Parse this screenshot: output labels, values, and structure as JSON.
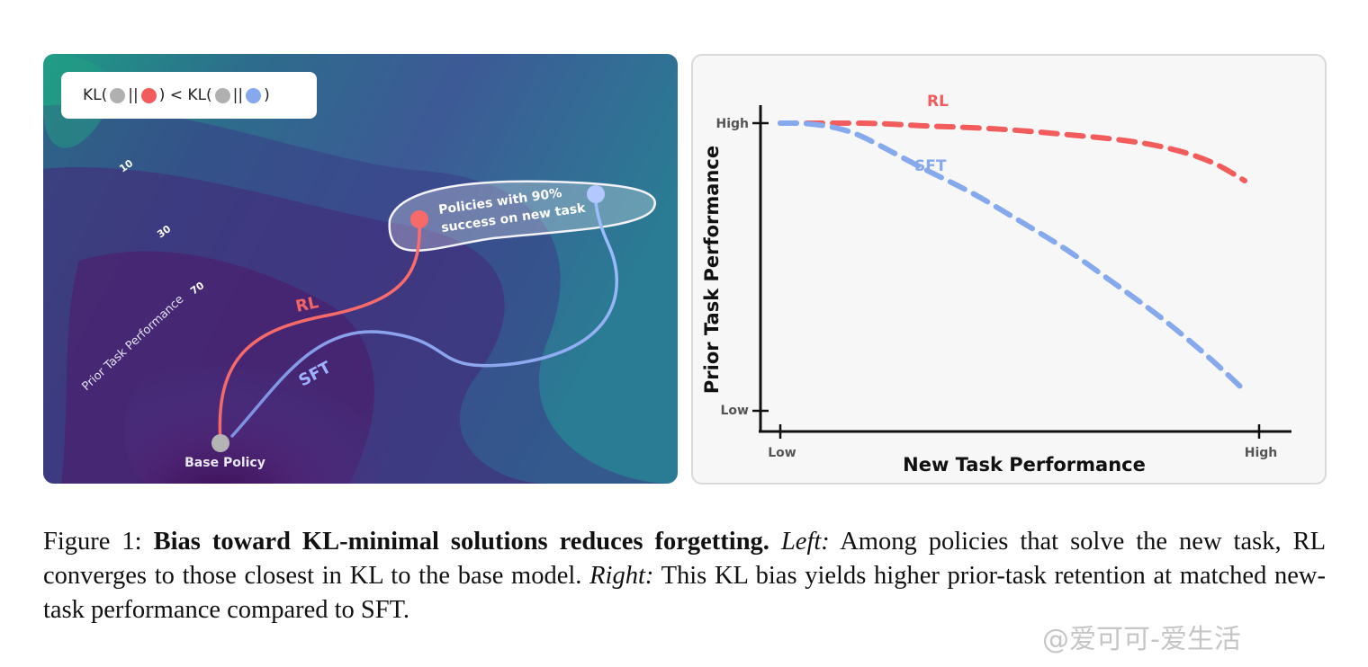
{
  "left_panel": {
    "kl_expression": {
      "prefix": "KL(",
      "sep": "||",
      "mid": ") < KL(",
      "suffix": ")",
      "dot_colors": {
        "base": "#b0b0b0",
        "rl": "#f25c5c",
        "sft": "#86a9ee"
      }
    },
    "contour_labels": [
      "10",
      "30",
      "70"
    ],
    "axis_label": "Prior Task Performance",
    "region_label_line1": "Policies with 90%",
    "region_label_line2": "success on new task",
    "rl_label": "RL",
    "sft_label": "SFT",
    "base_label": "Base Policy"
  },
  "chart_data": {
    "type": "line",
    "xlabel": "New Task Performance",
    "ylabel": "Prior Task Performance",
    "x_ticks": [
      "Low",
      "High"
    ],
    "y_ticks": [
      "High",
      "Low"
    ],
    "xlim": [
      0,
      1
    ],
    "ylim": [
      0,
      1
    ],
    "series": [
      {
        "name": "RL",
        "color": "#f25c5c",
        "x": [
          0,
          0.1,
          0.2,
          0.3,
          0.4,
          0.5,
          0.6,
          0.7,
          0.8,
          0.9,
          0.97
        ],
        "y": [
          1.0,
          1.0,
          1.0,
          0.99,
          0.985,
          0.975,
          0.96,
          0.945,
          0.92,
          0.87,
          0.8
        ]
      },
      {
        "name": "SFT",
        "color": "#86a9ee",
        "x": [
          0,
          0.05,
          0.1,
          0.15,
          0.2,
          0.3,
          0.4,
          0.5,
          0.6,
          0.7,
          0.8,
          0.9,
          0.97
        ],
        "y": [
          1.0,
          1.0,
          0.99,
          0.97,
          0.93,
          0.84,
          0.76,
          0.66,
          0.56,
          0.44,
          0.32,
          0.18,
          0.07
        ]
      }
    ]
  },
  "caption": {
    "label": "Figure 1:",
    "bold": "Bias toward KL-minimal solutions reduces forgetting.",
    "left_label": "Left:",
    "left_text": "Among policies that solve the new task, RL converges to those closest in KL to the base model.",
    "right_label": "Right:",
    "right_text": "This KL bias yields higher prior-task retention at matched new-task performance compared to SFT."
  },
  "watermark": "@爱可可-爱生活"
}
